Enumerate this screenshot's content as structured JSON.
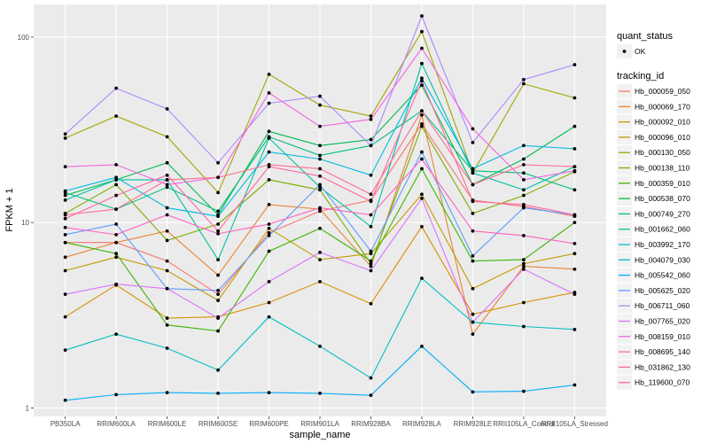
{
  "chart_data": {
    "type": "line",
    "title": "",
    "xlabel": "sample_name",
    "ylabel": "FPKM + 1",
    "y_scale": "log10",
    "ylim": [
      0.9,
      150
    ],
    "y_ticks": [
      1,
      10,
      100
    ],
    "y_tick_labels": [
      "1",
      "10",
      "100"
    ],
    "grid": true,
    "categories": [
      "PB350LA",
      "RRIM600LA",
      "RRIM600LE",
      "RRIM600SE",
      "RRIM600PE",
      "RRIM901LA",
      "RRIM928BA",
      "RRIM928LA",
      "RRIM928LE",
      "RRII105LA_Control",
      "RRII105LA_Stressed"
    ],
    "legend_position": "right",
    "legend_shape": {
      "title": "quant_status",
      "entries": [
        "OK"
      ]
    },
    "legend_color": {
      "title": "tracking_id"
    },
    "series": [
      {
        "name": "Hb_000059_050",
        "color": "#F8766D",
        "values": [
          7.8,
          7.8,
          6.2,
          4.1,
          8.8,
          11.5,
          13.2,
          34,
          13.2,
          12.2,
          10.8
        ]
      },
      {
        "name": "Hb_000069_170",
        "color": "#EA8331",
        "values": [
          6.5,
          7.8,
          9.0,
          5.2,
          12.5,
          11.8,
          5.8,
          38,
          2.5,
          5.8,
          5.6
        ]
      },
      {
        "name": "Hb_000092_010",
        "color": "#D89000",
        "values": [
          3.1,
          4.6,
          3.05,
          3.1,
          3.7,
          4.8,
          3.65,
          9.5,
          3.2,
          3.7,
          4.2
        ]
      },
      {
        "name": "Hb_000096_010",
        "color": "#C09B00",
        "values": [
          5.5,
          6.5,
          5.5,
          3.8,
          9.3,
          6.3,
          6.8,
          14.2,
          4.4,
          6.0,
          6.8
        ]
      },
      {
        "name": "Hb_000130_050",
        "color": "#A3A500",
        "values": [
          28.5,
          37.5,
          29.0,
          14.5,
          63.0,
          43.0,
          37.5,
          107.0,
          18.5,
          56.0,
          47.0
        ]
      },
      {
        "name": "Hb_000138_110",
        "color": "#7CAE00",
        "values": [
          11.2,
          16.0,
          8.0,
          9.8,
          17.0,
          15.0,
          6.0,
          33.0,
          11.2,
          14.0,
          18.8
        ]
      },
      {
        "name": "Hb_000359_010",
        "color": "#39B600",
        "values": [
          7.8,
          6.8,
          2.8,
          2.6,
          7.0,
          9.3,
          6.2,
          19.5,
          6.2,
          6.3,
          10.0
        ]
      },
      {
        "name": "Hb_000538_070",
        "color": "#00BB4E",
        "values": [
          14.0,
          17.0,
          21.0,
          11.0,
          31.0,
          26.0,
          28.0,
          55.0,
          16.0,
          22.0,
          33.0
        ]
      },
      {
        "name": "Hb_000749_270",
        "color": "#00BF7D",
        "values": [
          14.5,
          11.8,
          15.5,
          11.5,
          29.0,
          23.0,
          26.0,
          40.0,
          19.0,
          18.5,
          15.0
        ]
      },
      {
        "name": "Hb_001662_060",
        "color": "#00C1A3",
        "values": [
          13.2,
          17.0,
          17.0,
          6.3,
          28.5,
          15.5,
          9.5,
          72.0,
          18.5,
          15.0,
          20.0
        ]
      },
      {
        "name": "Hb_003992_170",
        "color": "#00BFC4",
        "values": [
          2.05,
          2.5,
          2.1,
          1.6,
          3.1,
          2.15,
          1.45,
          5.0,
          2.9,
          2.75,
          2.65
        ]
      },
      {
        "name": "Hb_004079_030",
        "color": "#00B9E3",
        "values": [
          14.8,
          17.5,
          12.0,
          10.8,
          24.0,
          22.0,
          18.0,
          60.0,
          19.5,
          26.0,
          25.0
        ]
      },
      {
        "name": "Hb_005542_060",
        "color": "#00ADFA",
        "values": [
          1.1,
          1.18,
          1.21,
          1.2,
          1.21,
          1.2,
          1.17,
          2.15,
          1.22,
          1.23,
          1.33
        ]
      },
      {
        "name": "Hb_005625_020",
        "color": "#619CFF",
        "values": [
          8.6,
          9.8,
          4.4,
          4.3,
          8.5,
          16.0,
          7.0,
          24.0,
          6.6,
          12.0,
          11.0
        ]
      },
      {
        "name": "Hb_006711_060",
        "color": "#AE87FF",
        "values": [
          30.0,
          53.0,
          41.0,
          21.0,
          44.0,
          48.0,
          26.0,
          130.0,
          27.0,
          59.0,
          71.0
        ]
      },
      {
        "name": "Hb_007765_020",
        "color": "#DB72FB",
        "values": [
          4.1,
          4.65,
          4.4,
          3.05,
          4.8,
          6.9,
          5.5,
          13.5,
          2.9,
          5.6,
          4.1
        ]
      },
      {
        "name": "Hb_008159_010",
        "color": "#F564E3",
        "values": [
          20.0,
          20.5,
          16.0,
          17.5,
          50.0,
          33.0,
          36.0,
          87.0,
          32.0,
          17.0,
          19.0
        ]
      },
      {
        "name": "Hb_008695_140",
        "color": "#FF61C3",
        "values": [
          9.4,
          8.6,
          11.0,
          8.7,
          9.8,
          12.0,
          11.0,
          22.0,
          9.0,
          8.5,
          7.7
        ]
      },
      {
        "name": "Hb_031862_130",
        "color": "#FF67A4",
        "values": [
          10.5,
          14.0,
          18.0,
          9.0,
          20.0,
          17.8,
          13.0,
          58.0,
          13.0,
          12.5,
          11.0
        ]
      },
      {
        "name": "Hb_119600_070",
        "color": "#FF6C91",
        "values": [
          11.0,
          11.8,
          17.0,
          17.5,
          20.5,
          19.5,
          14.2,
          40.0,
          16.0,
          20.5,
          20.0
        ]
      }
    ]
  }
}
